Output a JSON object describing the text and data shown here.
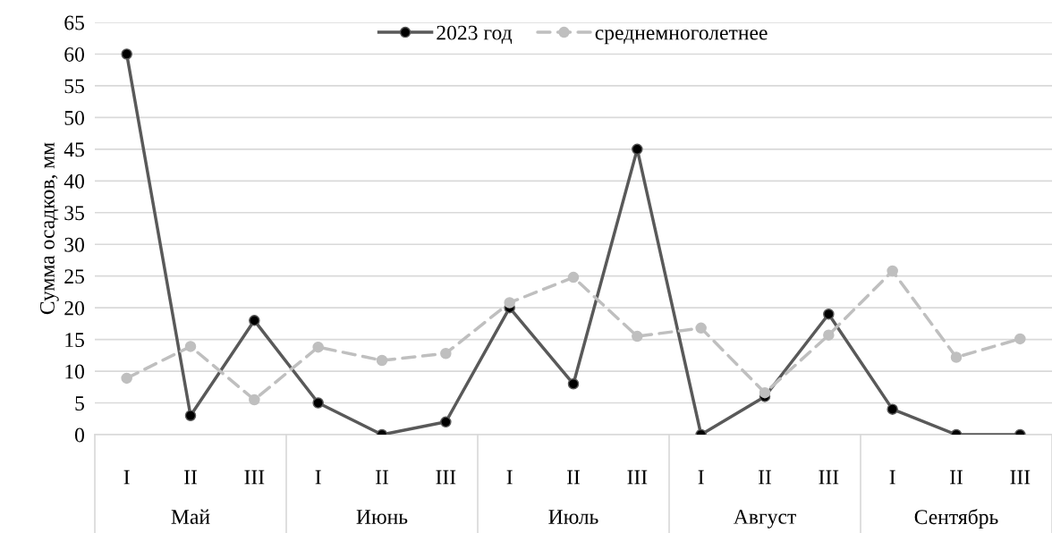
{
  "chart_data": {
    "type": "line",
    "ylabel": "Сумма осадков, мм",
    "categories": [
      "I",
      "II",
      "III",
      "I",
      "II",
      "III",
      "I",
      "II",
      "III",
      "I",
      "II",
      "III",
      "I",
      "II",
      "III"
    ],
    "annotations": [
      "Май",
      "Июнь",
      "Июль",
      "Август",
      "Сентябрь"
    ],
    "series": [
      {
        "name": "2023 год",
        "color": "#595959",
        "marker": "circle",
        "line_style": "solid",
        "values": [
          60,
          3,
          18,
          5,
          0,
          2,
          20,
          8,
          45,
          0,
          6,
          19,
          4,
          0,
          0
        ]
      },
      {
        "name": "среднемноголетнее",
        "color": "#bfbfbf",
        "marker": "circle",
        "line_style": "dashed",
        "values": [
          8.9,
          13.9,
          5.5,
          13.8,
          11.7,
          12.8,
          20.8,
          24.8,
          15.5,
          16.8,
          6.6,
          15.7,
          25.8,
          12.2,
          15.1
        ]
      }
    ],
    "ylim": [
      0,
      65
    ],
    "yticks": [
      0,
      5,
      10,
      15,
      20,
      25,
      30,
      35,
      40,
      45,
      50,
      55,
      60,
      65
    ],
    "grid": "y",
    "legend": "top"
  }
}
